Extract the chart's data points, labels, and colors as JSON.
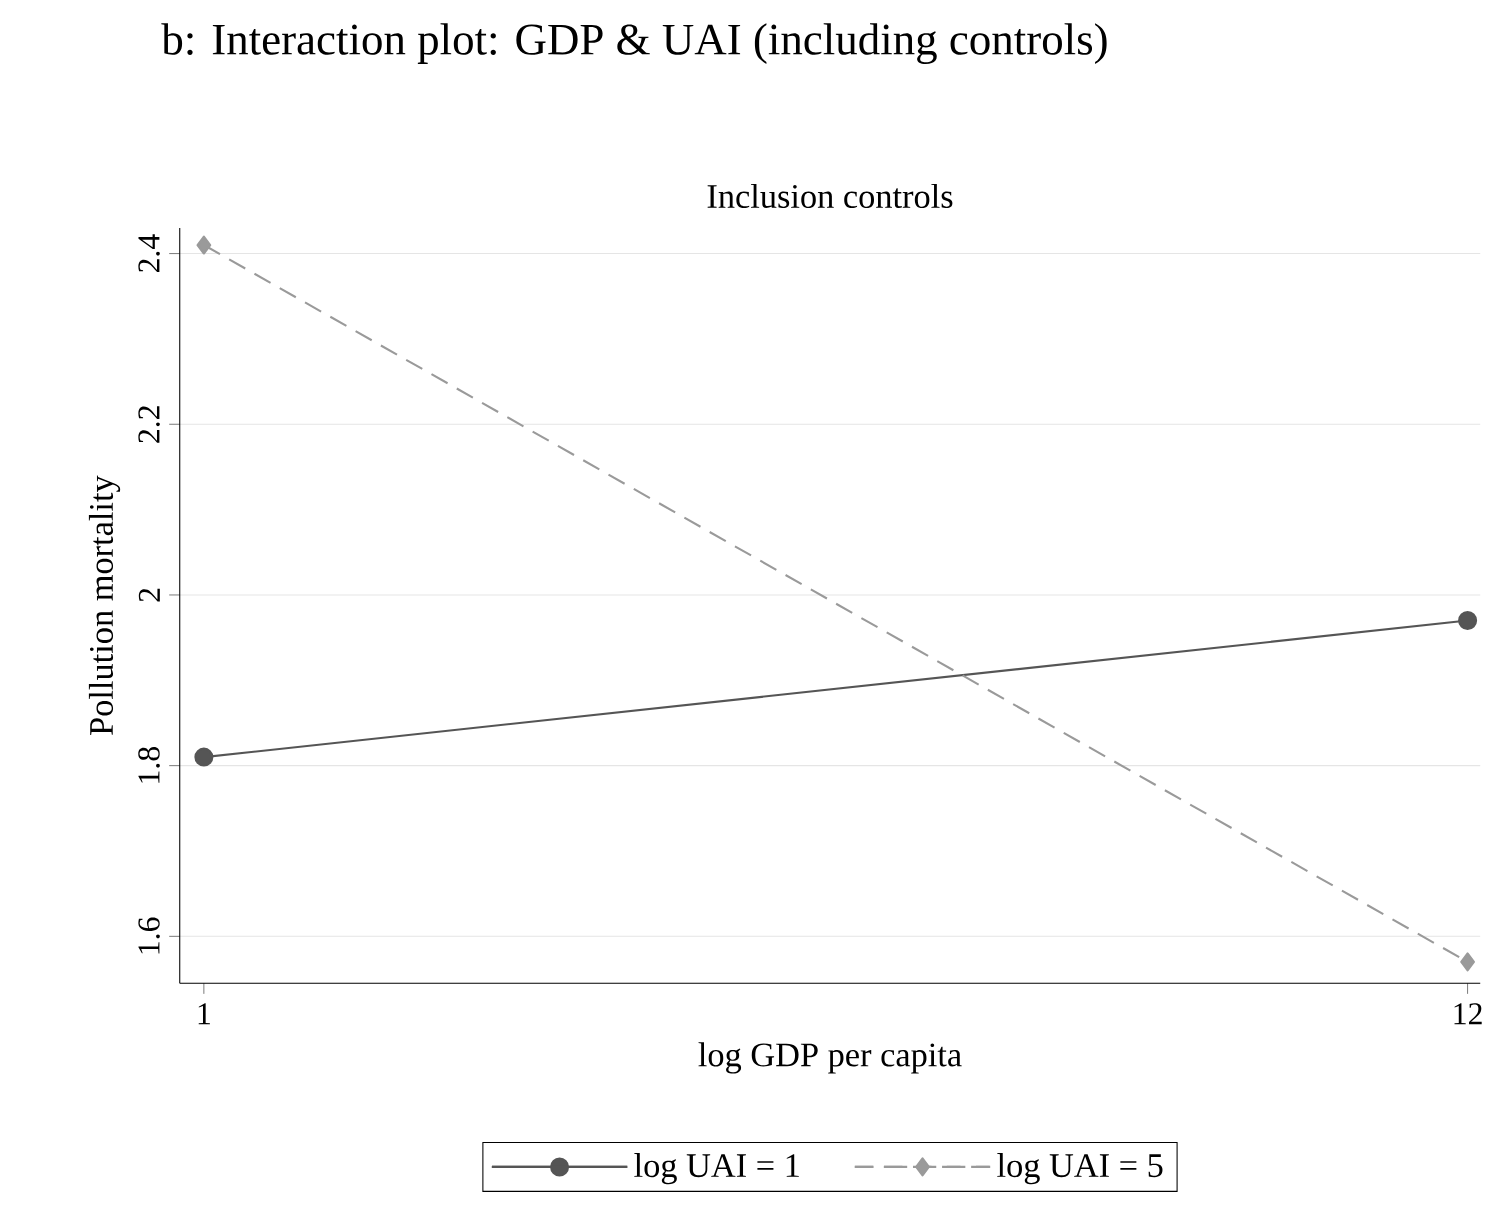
{
  "chart_data": {
    "type": "line",
    "title": "b: Interaction plot: GDP & UAI (including controls)",
    "subtitle": "Inclusion controls",
    "xlabel": "log GDP per capita",
    "ylabel": "Pollution mortality",
    "x": [
      1,
      12
    ],
    "series": [
      {
        "name": "log UAI = 1",
        "color": "#555555",
        "values": [
          1.81,
          1.97
        ],
        "marker": "circle",
        "line_style": "solid"
      },
      {
        "name": "log UAI = 5",
        "color": "#9a9a9a",
        "values": [
          2.41,
          1.57
        ],
        "marker": "diamond",
        "line_style": "dashed"
      }
    ],
    "xlim": [
      0.79,
      12.11
    ],
    "ylim": [
      1.545,
      2.43
    ],
    "xticks": [
      1,
      12
    ],
    "yticks": [
      1.6,
      1.8,
      2,
      2.2,
      2.4
    ],
    "grid": "y",
    "legend": "bottom"
  }
}
